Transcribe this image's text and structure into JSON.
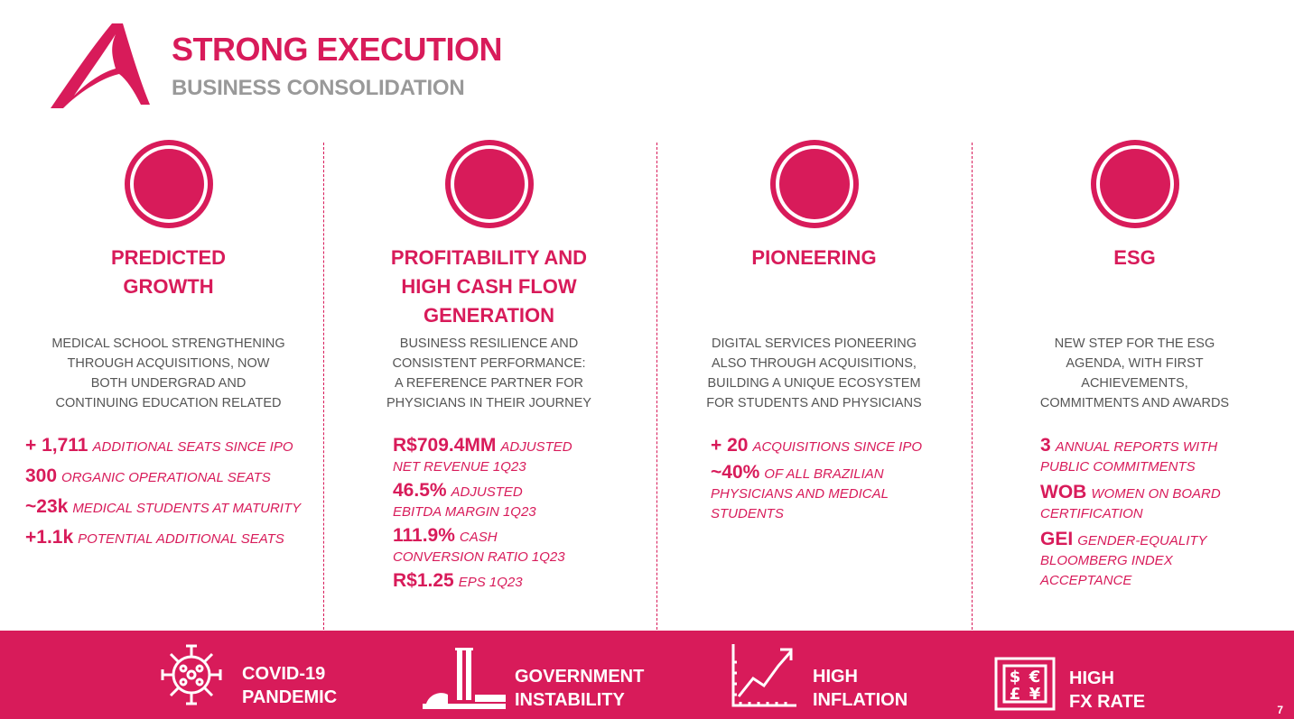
{
  "header": {
    "title": "STRONG EXECUTION",
    "subtitle": "BUSINESS CONSOLIDATION"
  },
  "colors": {
    "accent": "#d81b5a",
    "subtitle": "#999999",
    "text": "#555555"
  },
  "columns": [
    {
      "heading_lines": [
        "PREDICTED",
        "GROWTH"
      ],
      "desc_lines": [
        "MEDICAL SCHOOL STRENGTHENING",
        "THROUGH ACQUISITIONS, NOW",
        "BOTH UNDERGRAD AND",
        "CONTINUING EDUCATION RELATED"
      ],
      "stats": [
        {
          "num": "+ 1,711",
          "text": "ADDITIONAL SEATS SINCE IPO"
        },
        {
          "num": "300",
          "text": "ORGANIC OPERATIONAL SEATS"
        },
        {
          "num": "~23k",
          "text": "MEDICAL STUDENTS AT MATURITY"
        },
        {
          "num": "+1.1k",
          "text": "POTENTIAL ADDITIONAL SEATS"
        }
      ]
    },
    {
      "heading_lines": [
        "PROFITABILITY AND",
        "HIGH CASH FLOW",
        "GENERATION"
      ],
      "desc_lines": [
        "BUSINESS RESILIENCE AND",
        "CONSISTENT PERFORMANCE:",
        "A REFERENCE PARTNER FOR",
        "PHYSICIANS IN THEIR JOURNEY"
      ],
      "stats": [
        {
          "num": "R$709.4MM",
          "text": "ADJUSTED",
          "text2": "NET REVENUE 1Q23"
        },
        {
          "num": "46.5%",
          "text": "ADJUSTED",
          "text2": "EBITDA MARGIN 1Q23"
        },
        {
          "num": "111.9%",
          "text": "CASH",
          "text2": "CONVERSION RATIO 1Q23"
        },
        {
          "num": "R$1.25",
          "text": "EPS 1Q23"
        }
      ]
    },
    {
      "heading_lines": [
        "PIONEERING"
      ],
      "desc_lines": [
        "DIGITAL SERVICES PIONEERING",
        "ALSO THROUGH ACQUISITIONS,",
        "BUILDING A UNIQUE ECOSYSTEM",
        "FOR STUDENTS AND PHYSICIANS"
      ],
      "stats": [
        {
          "num": "+ 20",
          "text": "ACQUISITIONS SINCE IPO"
        },
        {
          "num": "~40%",
          "text": "OF ALL BRAZILIAN",
          "text2": "PHYSICIANS AND MEDICAL",
          "text3": "STUDENTS"
        }
      ]
    },
    {
      "heading_lines": [
        "ESG"
      ],
      "desc_lines": [
        "NEW STEP FOR THE ESG",
        "AGENDA, WITH FIRST",
        "ACHIEVEMENTS,",
        "COMMITMENTS AND AWARDS"
      ],
      "stats": [
        {
          "num": "3",
          "text": "ANNUAL REPORTS WITH",
          "text2": "PUBLIC COMMITMENTS"
        },
        {
          "num": "WOB",
          "text": "WOMEN ON BOARD",
          "text2": "CERTIFICATION"
        },
        {
          "num": "GEI",
          "text": "GENDER-EQUALITY",
          "text2": "BLOOMBERG INDEX",
          "text3": "ACCEPTANCE"
        }
      ]
    }
  ],
  "risks": [
    {
      "icon": "virus-icon",
      "lines": [
        "COVID-19",
        "PANDEMIC"
      ]
    },
    {
      "icon": "congress-building-icon",
      "lines": [
        "GOVERNMENT",
        "INSTABILITY"
      ]
    },
    {
      "icon": "rising-chart-icon",
      "lines": [
        "HIGH",
        "INFLATION"
      ]
    },
    {
      "icon": "currency-icon",
      "lines": [
        "HIGH",
        "FX RATE"
      ],
      "glyphs": [
        "$",
        "€",
        "£",
        "¥"
      ]
    }
  ],
  "page_number": "7"
}
